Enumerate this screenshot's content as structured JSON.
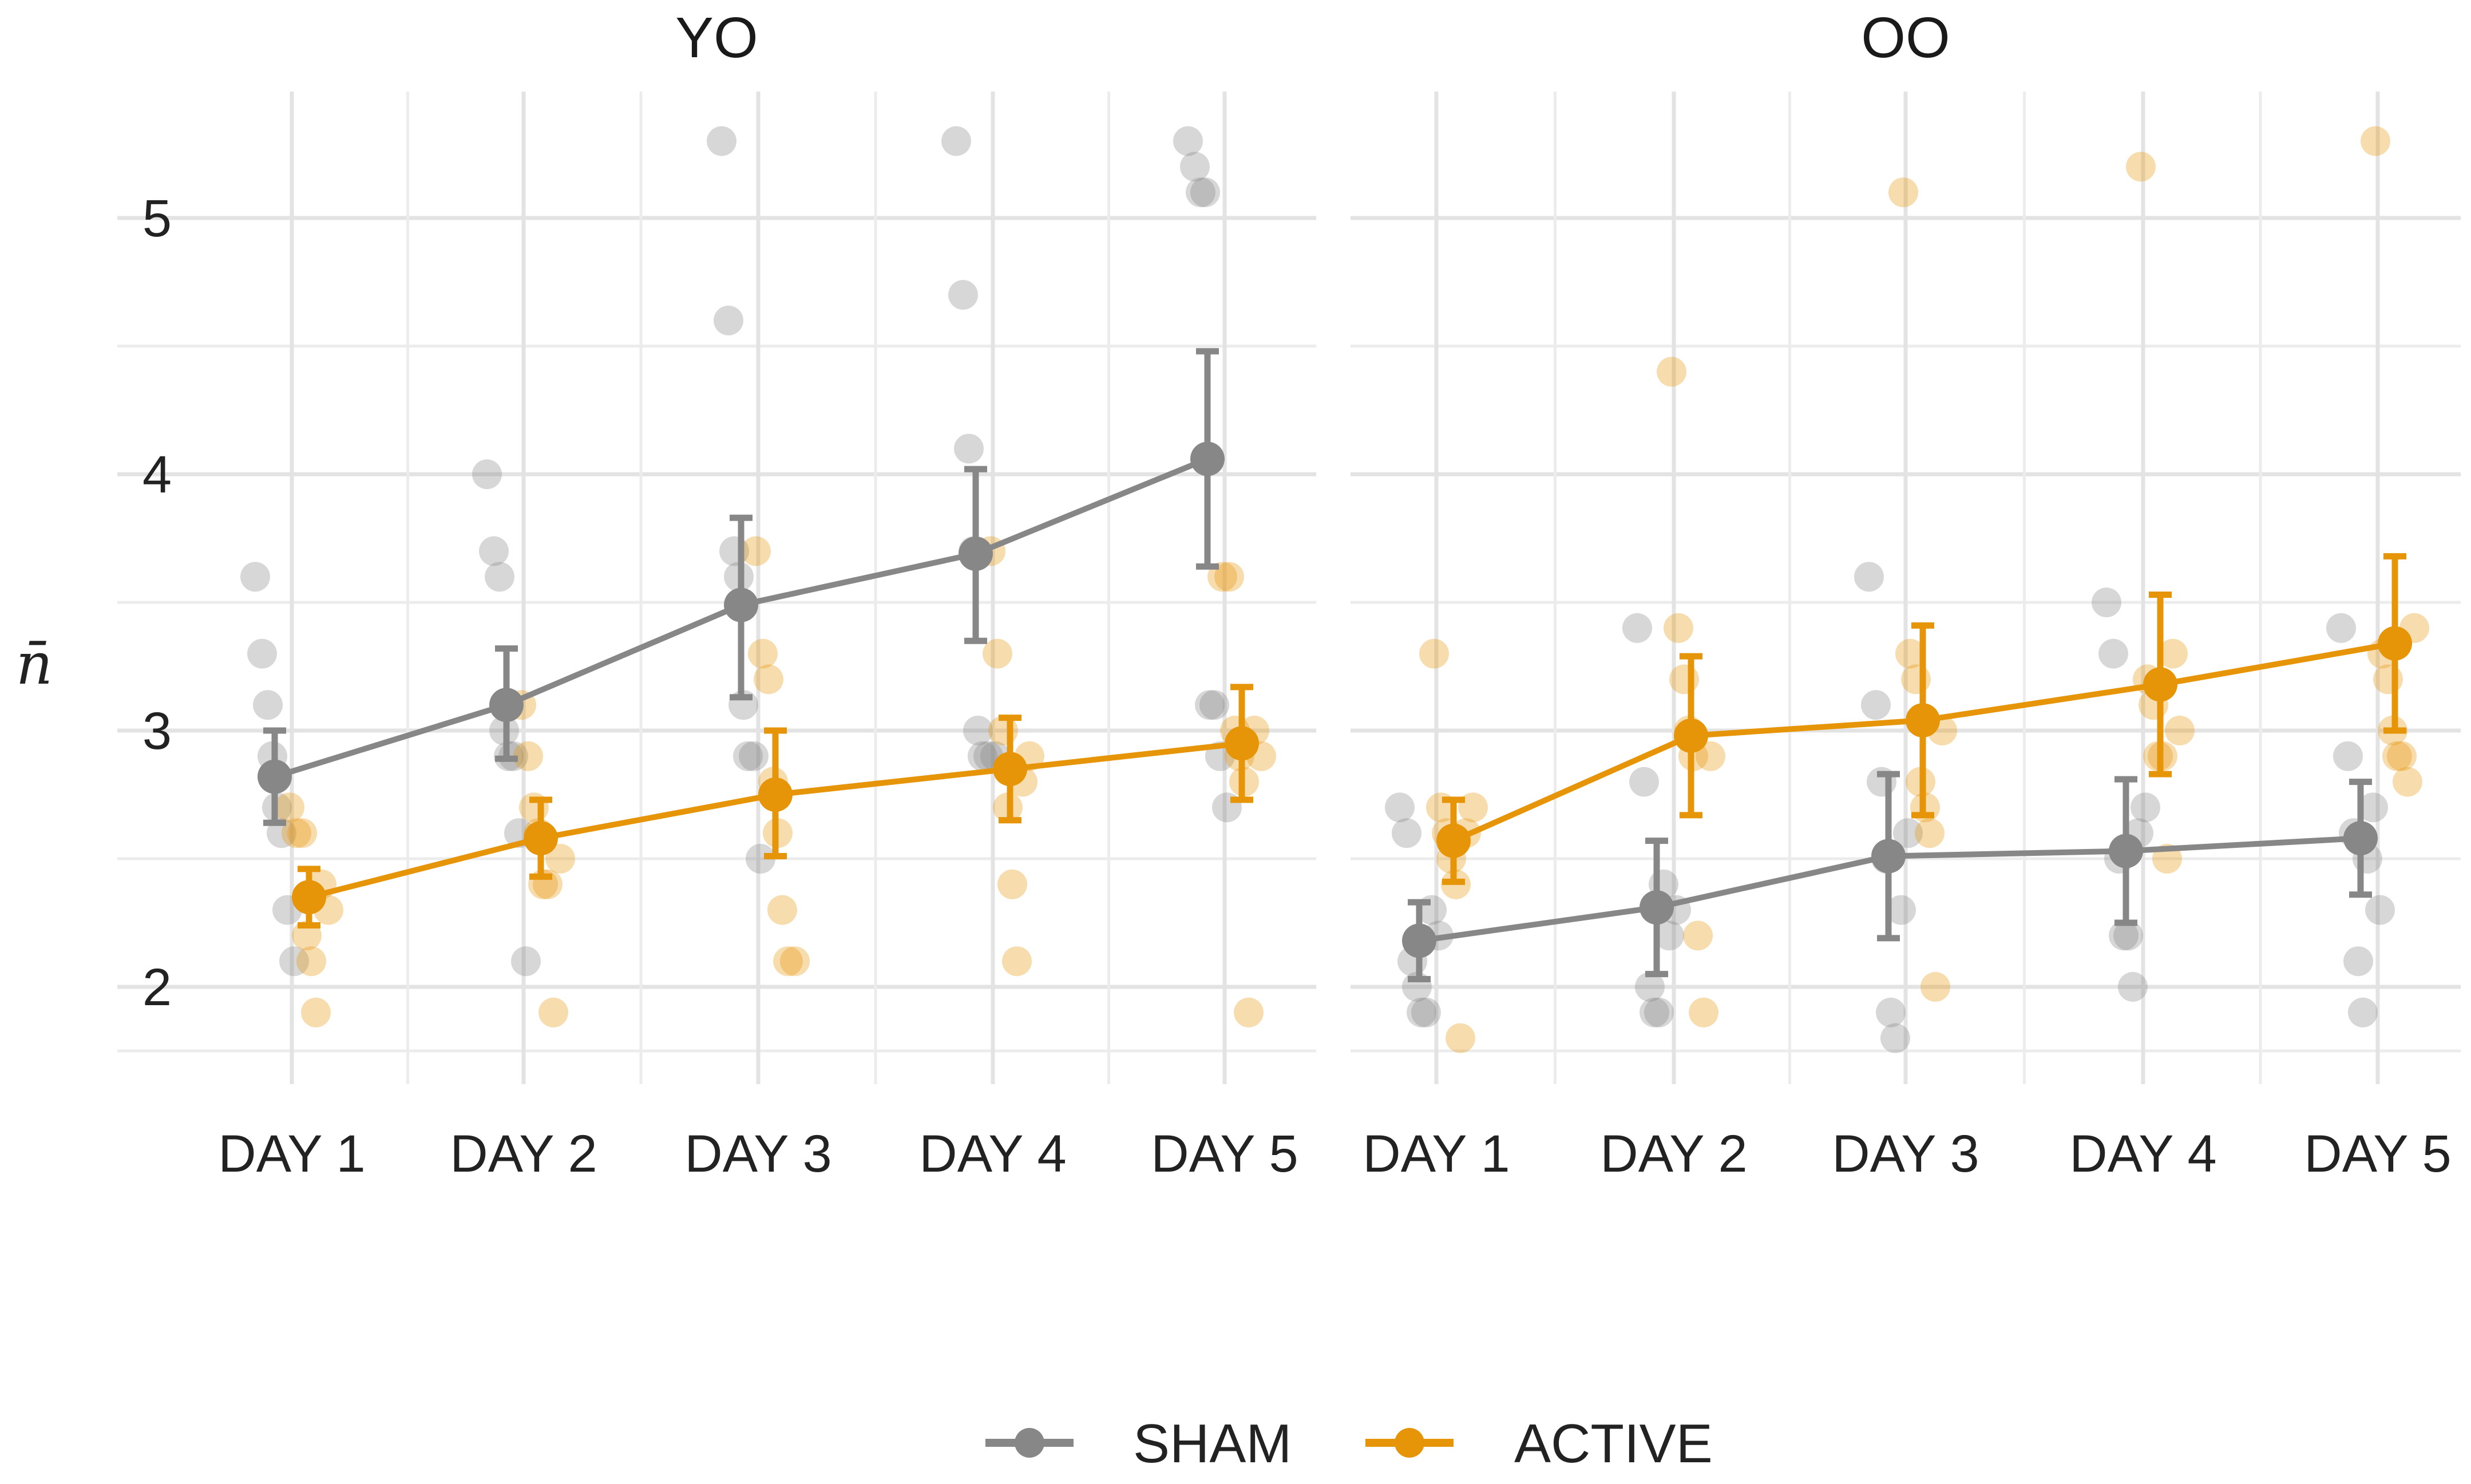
{
  "chart_data": {
    "type": "line",
    "ylabel": "n̄",
    "ylim": [
      1.6,
      5.5
    ],
    "yticks": [
      "2",
      "3",
      "4",
      "5"
    ],
    "categories": [
      "DAY 1",
      "DAY 2",
      "DAY 3",
      "DAY 4",
      "DAY 5"
    ],
    "legend": {
      "placement": "bottom-center",
      "entries": [
        {
          "name": "SHAM",
          "color": "#878787"
        },
        {
          "name": "ACTIVE",
          "color": "#E69408"
        }
      ]
    },
    "panels": [
      {
        "title": "YO",
        "series": [
          {
            "name": "SHAM",
            "color": "#878787",
            "means": [
              2.82,
              3.1,
              3.49,
              3.69,
              4.06
            ],
            "ci_low": [
              2.64,
              2.89,
              3.13,
              3.35,
              3.64
            ],
            "ci_high": [
              3.0,
              3.32,
              3.83,
              4.02,
              4.48
            ],
            "points": [
              [
                3.6,
                3.3,
                3.1,
                2.9,
                2.7,
                2.6,
                2.3,
                2.1
              ],
              [
                4.0,
                3.7,
                3.6,
                3.0,
                2.9,
                2.9,
                2.6,
                2.1
              ],
              [
                5.3,
                4.6,
                3.7,
                3.6,
                3.1,
                2.9,
                2.9,
                2.5
              ],
              [
                5.3,
                4.7,
                4.1,
                3.7,
                3.0,
                2.9,
                2.9,
                2.9
              ],
              [
                5.3,
                5.2,
                5.1,
                5.1,
                3.1,
                3.1,
                2.9,
                2.7
              ]
            ]
          },
          {
            "name": "ACTIVE",
            "color": "#E69408",
            "means": [
              2.35,
              2.58,
              2.75,
              2.85,
              2.95
            ],
            "ci_low": [
              2.24,
              2.43,
              2.51,
              2.65,
              2.73
            ],
            "ci_high": [
              2.46,
              2.73,
              3.0,
              3.05,
              3.17
            ],
            "points": [
              [
                2.7,
                2.6,
                2.6,
                2.2,
                2.1,
                1.9,
                2.4,
                2.3
              ],
              [
                3.1,
                2.9,
                2.7,
                2.6,
                2.4,
                2.4,
                1.9,
                2.5
              ],
              [
                3.7,
                3.3,
                3.2,
                2.8,
                2.6,
                2.3,
                2.1,
                2.1
              ],
              [
                3.7,
                3.3,
                3.0,
                2.7,
                2.4,
                2.1,
                2.8,
                2.9
              ],
              [
                3.6,
                3.6,
                3.0,
                2.9,
                2.8,
                1.9,
                3.0,
                2.9
              ]
            ]
          }
        ]
      },
      {
        "title": "OO",
        "series": [
          {
            "name": "SHAM",
            "color": "#878787",
            "means": [
              2.18,
              2.31,
              2.51,
              2.53,
              2.58
            ],
            "ci_low": [
              2.03,
              2.05,
              2.19,
              2.25,
              2.36
            ],
            "ci_high": [
              2.33,
              2.57,
              2.83,
              2.81,
              2.8
            ],
            "points": [
              [
                2.7,
                2.6,
                2.1,
                2.0,
                1.9,
                1.9,
                2.3,
                2.2
              ],
              [
                3.4,
                2.8,
                2.0,
                1.9,
                1.9,
                2.4,
                2.2,
                2.3
              ],
              [
                3.6,
                3.1,
                2.8,
                2.5,
                1.9,
                1.8,
                2.3,
                2.6
              ],
              [
                3.5,
                3.3,
                2.5,
                2.2,
                2.2,
                2.0,
                2.6,
                2.7
              ],
              [
                3.4,
                2.9,
                2.6,
                2.1,
                1.9,
                2.5,
                2.7,
                2.3
              ]
            ]
          },
          {
            "name": "ACTIVE",
            "color": "#E69408",
            "means": [
              2.57,
              2.98,
              3.04,
              3.18,
              3.34
            ],
            "ci_low": [
              2.41,
              2.67,
              2.67,
              2.83,
              3.0
            ],
            "ci_high": [
              2.73,
              3.29,
              3.41,
              3.53,
              3.68
            ],
            "points": [
              [
                3.3,
                2.7,
                2.6,
                2.5,
                2.4,
                1.8,
                2.6,
                2.7
              ],
              [
                4.4,
                3.4,
                3.2,
                3.0,
                2.9,
                2.2,
                1.9,
                2.9
              ],
              [
                5.1,
                3.3,
                3.2,
                2.8,
                2.7,
                2.6,
                2.0,
                3.0
              ],
              [
                5.2,
                3.2,
                3.1,
                2.9,
                2.9,
                2.5,
                3.3,
                3.0
              ],
              [
                5.3,
                3.3,
                3.2,
                3.0,
                2.9,
                2.9,
                2.8,
                3.4
              ]
            ]
          }
        ]
      }
    ]
  }
}
